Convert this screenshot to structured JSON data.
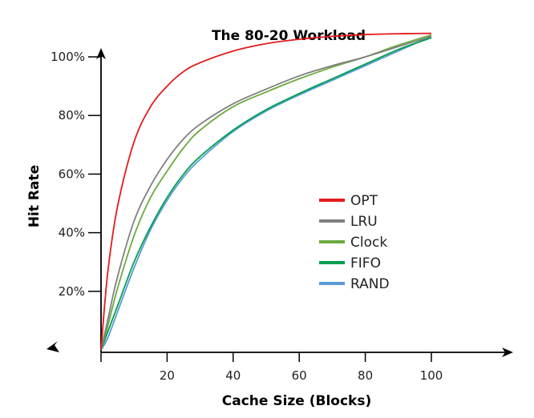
{
  "chart_data": {
    "type": "line",
    "title": "The 80-20 Workload",
    "xlabel": "Cache Size (Blocks)",
    "ylabel": "Hit Rate",
    "xlim": [
      0,
      100
    ],
    "ylim": [
      0,
      100
    ],
    "x_ticks": [
      20,
      40,
      60,
      80,
      100
    ],
    "y_ticks": [
      {
        "value": 20,
        "label": "20%"
      },
      {
        "value": 40,
        "label": "40%"
      },
      {
        "value": 60,
        "label": "60%"
      },
      {
        "value": 80,
        "label": "80%"
      },
      {
        "value": 100,
        "label": "100%"
      }
    ],
    "grid": false,
    "legend_position": "center-right",
    "x": [
      0,
      2,
      5,
      10,
      15,
      20,
      25,
      30,
      40,
      50,
      60,
      70,
      80,
      90,
      100
    ],
    "series": [
      {
        "name": "OPT",
        "color": "#e41a1c",
        "values": [
          0,
          26,
          49,
          71,
          83,
          90,
          95,
          98,
          102,
          104.5,
          106,
          107,
          107.6,
          107.9,
          108
        ]
      },
      {
        "name": "LRU",
        "color": "#808080",
        "values": [
          0,
          10,
          25,
          44,
          56,
          65,
          72,
          77,
          84,
          89,
          93.5,
          97,
          100,
          103.5,
          107
        ]
      },
      {
        "name": "Clock",
        "color": "#6aab3e",
        "values": [
          0,
          8,
          21,
          39,
          52,
          61,
          69,
          75,
          83,
          88,
          92.5,
          96.5,
          100,
          104,
          107.5
        ]
      },
      {
        "name": "FIFO",
        "color": "#00a050",
        "values": [
          0,
          6,
          15,
          30,
          42,
          52,
          60,
          66,
          75,
          82,
          87.5,
          92.5,
          97.5,
          102.5,
          106.5
        ]
      },
      {
        "name": "RAND",
        "color": "#5b9bd5",
        "values": [
          0,
          4,
          13,
          28,
          41,
          51,
          59,
          65,
          74.5,
          81.5,
          87,
          92,
          97,
          102,
          107
        ]
      }
    ]
  }
}
